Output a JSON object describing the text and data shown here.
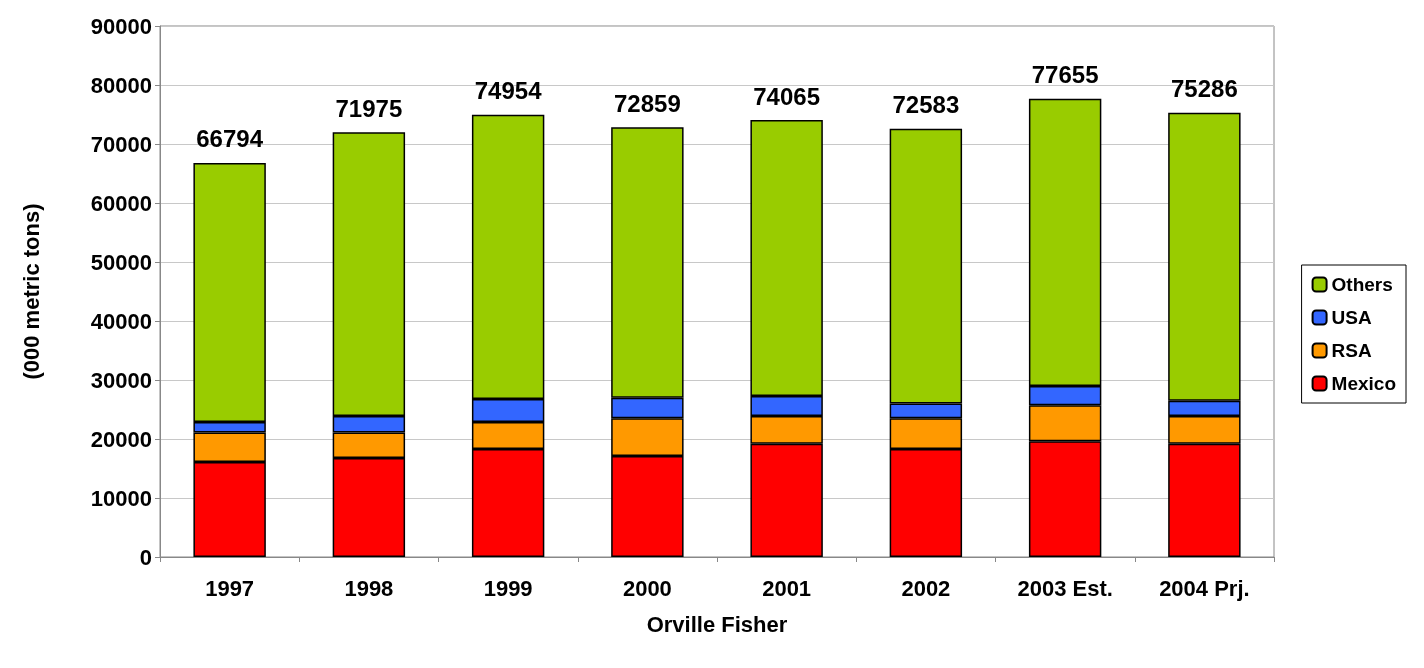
{
  "chart_data": {
    "type": "bar",
    "stacked": true,
    "xlabel": "Orville Fisher",
    "ylabel": "(000 metric tons)",
    "categories": [
      "1997",
      "1998",
      "1999",
      "2000",
      "2001",
      "2002",
      "2003 Est.",
      "2004 Prj."
    ],
    "series": [
      {
        "name": "Mexico",
        "color": "#ff0000",
        "values": [
          16100,
          16800,
          18300,
          17100,
          19200,
          18300,
          19600,
          19200
        ]
      },
      {
        "name": "RSA",
        "color": "#ff9900",
        "values": [
          5000,
          4300,
          4600,
          6400,
          4700,
          5200,
          6100,
          4700
        ]
      },
      {
        "name": "USA",
        "color": "#3366ff",
        "values": [
          1800,
          2800,
          3900,
          3500,
          3400,
          2500,
          3300,
          2600
        ]
      },
      {
        "name": "Others",
        "color": "#99cc00",
        "values": [
          43894,
          48075,
          48154,
          45859,
          46765,
          46583,
          48655,
          48786
        ]
      }
    ],
    "totals": [
      "66794",
      "71975",
      "74954",
      "72859",
      "74065",
      "72583",
      "77655",
      "75286"
    ],
    "ylim": [
      0,
      90000
    ],
    "yticks": [
      0,
      10000,
      20000,
      30000,
      40000,
      50000,
      60000,
      70000,
      80000,
      90000
    ],
    "grid": "y",
    "legend": "right"
  }
}
